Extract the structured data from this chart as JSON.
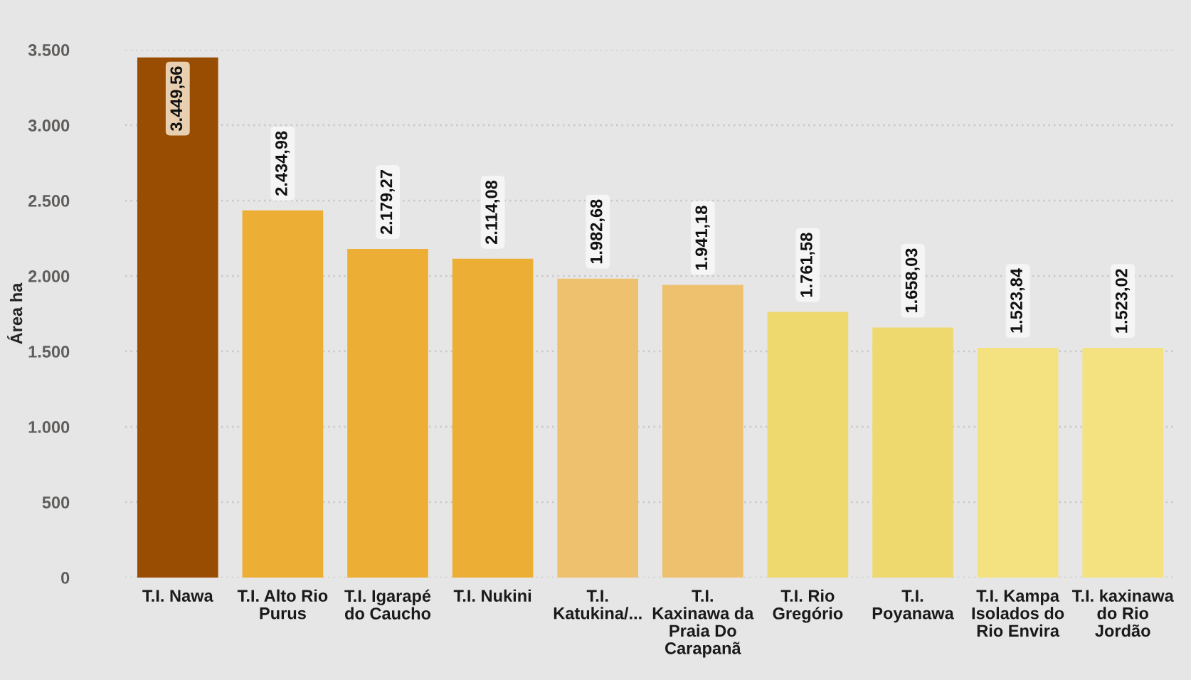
{
  "chart_data": {
    "type": "bar",
    "ylabel": "Área ha",
    "categories": [
      "T.I. Nawa",
      "T.I. Alto Rio Purus",
      "T.I. Igarapé do Caucho",
      "T.I. Nukini",
      "T.I. Katukina/...",
      "T.I. Kaxinawa da Praia Do Carapanã",
      "T.I. Rio Gregório",
      "T.I. Poyanawa",
      "T.I. Kampa Isolados do Rio Envira",
      "T.I. kaxinawa do Rio Jordão"
    ],
    "values": [
      3449.56,
      2434.98,
      2179.27,
      2114.08,
      1982.68,
      1941.18,
      1761.58,
      1658.03,
      1523.84,
      1523.02
    ],
    "colors": [
      "#994d03",
      "#edae35",
      "#edae35",
      "#edae35",
      "#edc16e",
      "#edc16e",
      "#edd96e",
      "#edd96e",
      "#f4e281",
      "#f4e281"
    ],
    "value_labels": [
      "3.449,56",
      "2.434,98",
      "2.179,27",
      "2.114,08",
      "1.982,68",
      "1.941,18",
      "1.761,58",
      "1.658,03",
      "1.523,84",
      "1.523,02"
    ],
    "ylim": [
      0,
      3500
    ],
    "yticks": [
      0,
      500,
      {
        "value": 1000,
        "label": "1.000"
      },
      {
        "value": 1500,
        "label": "1.500"
      },
      {
        "value": 2000,
        "label": "2.000"
      },
      {
        "value": 2500,
        "label": "2.500"
      },
      {
        "value": 3000,
        "label": "3.000"
      },
      {
        "value": 3500,
        "label": "3.500"
      }
    ],
    "grid": "y"
  }
}
